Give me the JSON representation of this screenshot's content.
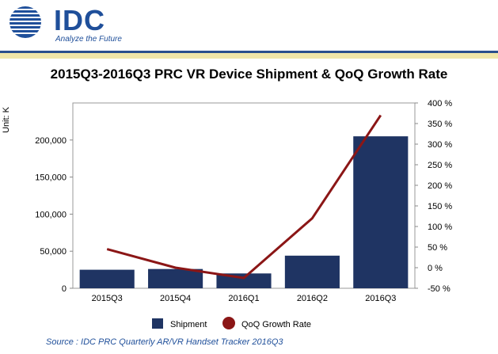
{
  "header": {
    "logo_text": "IDC",
    "tagline": "Analyze the Future"
  },
  "colors": {
    "bar": "#1f3463",
    "line": "#8b1616",
    "brand": "#1f4f9a"
  },
  "chart_data": {
    "type": "bar",
    "title": "2015Q3-2016Q3 PRC VR Device Shipment & QoQ Growth Rate",
    "ylabel": "Unit: K",
    "categories": [
      "2015Q3",
      "2015Q4",
      "2016Q1",
      "2016Q2",
      "2016Q3"
    ],
    "series": [
      {
        "name": "Shipment",
        "type": "bar",
        "axis": "left",
        "values": [
          25000,
          26000,
          20000,
          44000,
          205000
        ]
      },
      {
        "name": "QoQ Growth Rate",
        "type": "line",
        "axis": "right",
        "values": [
          45,
          0,
          -25,
          120,
          370
        ]
      }
    ],
    "ylim_left": [
      0,
      250000
    ],
    "yticks_left": [
      "0",
      "50,000",
      "100,000",
      "150,000",
      "200,000"
    ],
    "ylim_right": [
      -50,
      400
    ],
    "yticks_right": [
      "-50 %",
      "0 %",
      "50 %",
      "100 %",
      "150 %",
      "200 %",
      "250 %",
      "300 %",
      "350 %",
      "400 %"
    ],
    "legend": [
      "Shipment",
      "QoQ Growth Rate"
    ],
    "legend_position": "bottom",
    "grid": false
  },
  "source": "Source : IDC PRC Quarterly AR/VR Handset Tracker 2016Q3"
}
